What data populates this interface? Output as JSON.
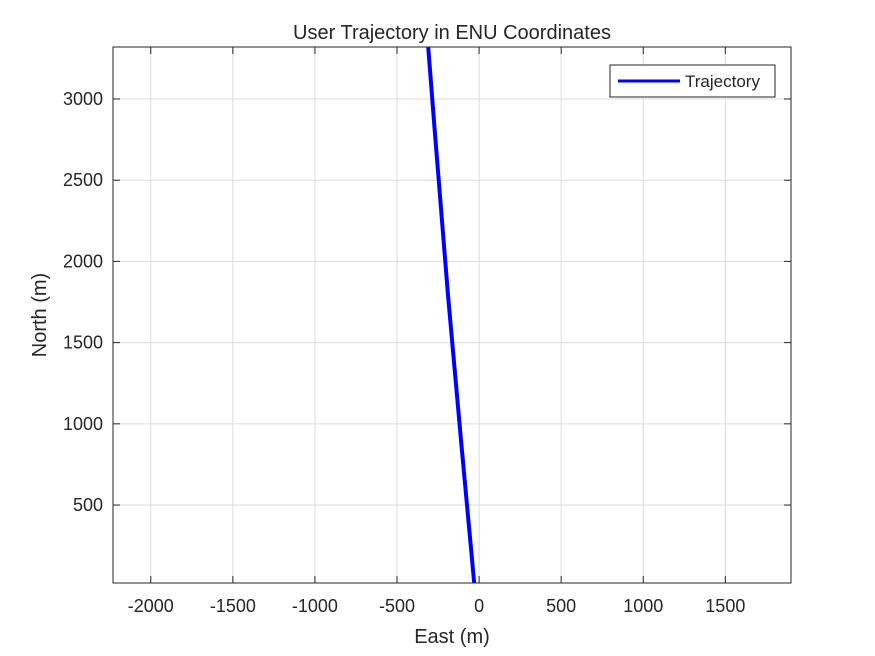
{
  "chart_data": {
    "type": "line",
    "title": "User Trajectory in ENU Coordinates",
    "xlabel": "East (m)",
    "ylabel": "North (m)",
    "xlim": [
      -2230,
      1900
    ],
    "ylim": [
      20,
      3320
    ],
    "xticks": [
      -2000,
      -1500,
      -1000,
      -500,
      0,
      500,
      1000,
      1500
    ],
    "xtick_labels": [
      "-2000",
      "-1500",
      "-1000",
      "-500",
      "0",
      "500",
      "1000",
      "1500"
    ],
    "yticks": [
      500,
      1000,
      1500,
      2000,
      2500,
      3000
    ],
    "ytick_labels": [
      "500",
      "1000",
      "1500",
      "2000",
      "2500",
      "3000"
    ],
    "grid": true,
    "box": true,
    "legend_position": "top-right",
    "series": [
      {
        "name": "Trajectory",
        "color": "#0000ff",
        "x": [
          -30,
          -110,
          -190,
          -270,
          -310
        ],
        "y": [
          20,
          900,
          1800,
          2800,
          3320
        ]
      }
    ]
  }
}
